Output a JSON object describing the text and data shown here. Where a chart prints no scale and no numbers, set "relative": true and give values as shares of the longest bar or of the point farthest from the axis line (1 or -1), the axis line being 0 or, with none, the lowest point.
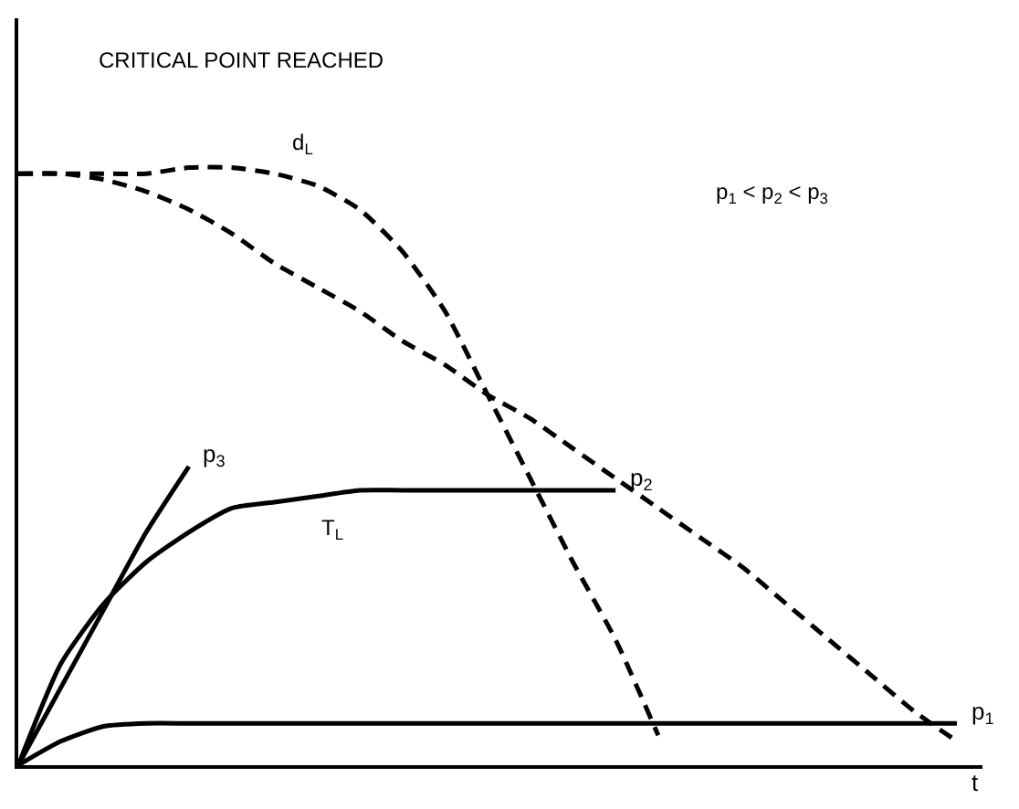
{
  "chart_data": {
    "type": "line",
    "relative": true,
    "xlabel": "t",
    "legend": false,
    "categories": [
      null,
      null,
      null,
      null,
      null,
      null,
      null,
      null,
      null,
      null,
      null,
      null,
      null,
      null,
      null,
      null,
      null,
      null,
      null,
      null,
      null,
      null,
      null
    ],
    "series": [
      {
        "name": "p$_{1}$",
        "color": "#000000",
        "line_style": "solid",
        "values": [
          0,
          0.04,
          0.065,
          0.07,
          0.07,
          0.07,
          0.07,
          0.07,
          0.07,
          0.07,
          0.07,
          0.07,
          0.07,
          0.07,
          0.07,
          0.07,
          0.07,
          0.07,
          0.07,
          0.07,
          0.07,
          0.07,
          0.07
        ]
      },
      {
        "name": "p$_{2}$",
        "color": "#000000",
        "line_style": "solid",
        "values": [
          0,
          0.17,
          0.27,
          0.34,
          0.39,
          0.43,
          0.44,
          0.45,
          0.46,
          0.46,
          0.46,
          0.46,
          0.46,
          0.46,
          0.46,
          null,
          null,
          null,
          null,
          null,
          null,
          null,
          null
        ]
      },
      {
        "name": "p$_{3}$",
        "color": "#000000",
        "line_style": "solid",
        "values": [
          0,
          0.13,
          0.26,
          0.39,
          0.5,
          null,
          null,
          null,
          null,
          null,
          null,
          null,
          null,
          null,
          null,
          null,
          null,
          null,
          null,
          null,
          null,
          null,
          null
        ]
      },
      {
        "color": "#000000",
        "line_style": "dashed",
        "values": [
          0.99,
          0.99,
          0.99,
          0.99,
          1.0,
          1.0,
          0.99,
          0.97,
          0.93,
          0.86,
          0.76,
          0.62,
          0.48,
          0.34,
          0.21,
          0.05,
          null,
          null,
          null,
          null,
          null,
          null,
          null
        ]
      },
      {
        "color": "#000000",
        "line_style": "dashed",
        "values": [
          0.99,
          0.99,
          0.98,
          0.96,
          0.93,
          0.89,
          0.84,
          0.8,
          0.76,
          0.71,
          0.67,
          0.62,
          0.58,
          0.53,
          0.48,
          0.43,
          0.38,
          0.33,
          0.27,
          0.21,
          0.15,
          0.09,
          0.04
        ]
      }
    ],
    "annotations": [
      "CRITICAL POINT REACHED",
      "d$_{L}$",
      "p$_{1}$ < p$_{2}$ < p$_{3}$",
      "T$_{L}$"
    ]
  }
}
